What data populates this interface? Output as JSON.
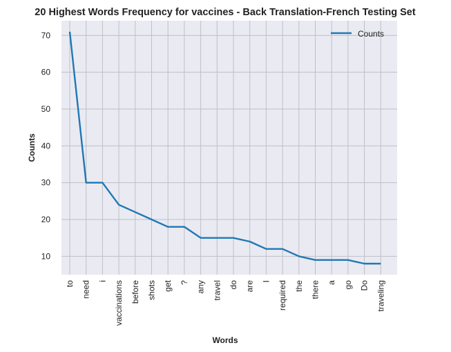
{
  "chart_data": {
    "type": "line",
    "title": "20 Highest Words Frequency for vaccines - Back Translation-French Testing Set",
    "xlabel": "Words",
    "ylabel": "Counts",
    "categories": [
      "to",
      "need",
      "i",
      "vaccinations",
      "before",
      "shots",
      "get",
      "?",
      "any",
      "travel",
      "do",
      "are",
      "I",
      "required",
      "the",
      "there",
      "a",
      "go",
      "Do",
      "traveling"
    ],
    "series": [
      {
        "name": "Counts",
        "color": "#1f77b4",
        "values": [
          71,
          30,
          30,
          24,
          22,
          20,
          18,
          18,
          15,
          15,
          15,
          14,
          12,
          12,
          10,
          9,
          9,
          9,
          8,
          8
        ]
      }
    ],
    "yticks": [
      10,
      20,
      30,
      40,
      50,
      60,
      70
    ],
    "ylim": [
      5,
      74
    ],
    "grid": true,
    "legend": "top-right",
    "background": "#eaeaf2",
    "grid_color": "#bfbfc6"
  }
}
